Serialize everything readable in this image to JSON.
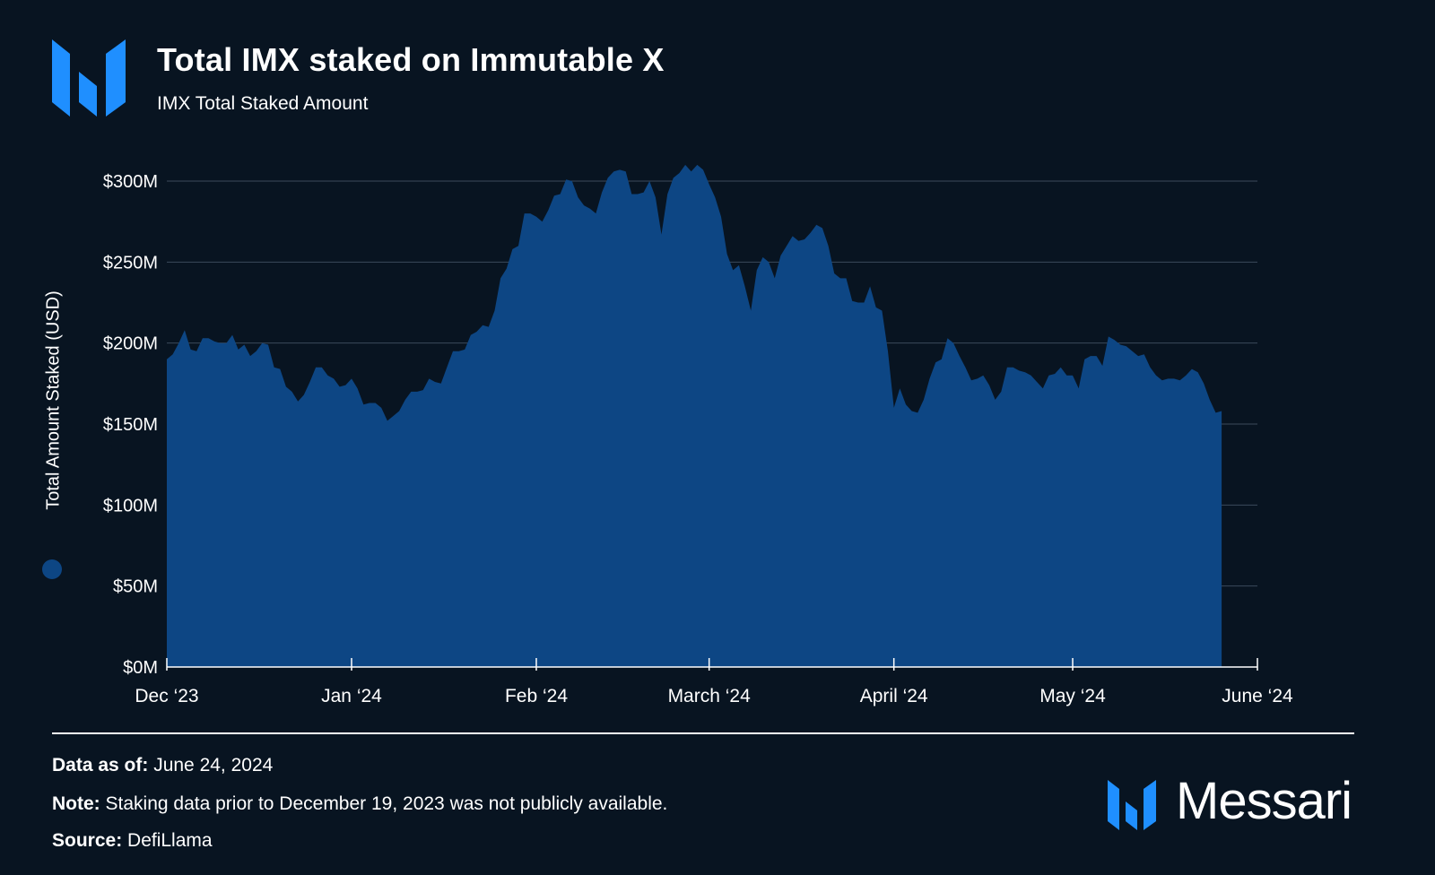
{
  "header": {
    "title": "Total IMX staked on Immutable X",
    "subtitle": "IMX Total Staked Amount"
  },
  "footer": {
    "data_as_of_label": "Data as of:",
    "data_as_of_value": "June 24, 2024",
    "note_label": "Note:",
    "note_value": "Staking data prior to December 19, 2023 was not publicly available.",
    "source_label": "Source:",
    "source_value": "DefiLlama",
    "brand": "Messari"
  },
  "colors": {
    "background": "#081421",
    "area_fill": "#0d4684",
    "brand_blue": "#1f8fff",
    "grid": "#3b4a5c"
  },
  "icons": [
    "immutable-x-logo-icon",
    "messari-logo-icon"
  ],
  "chart_data": {
    "type": "area",
    "title": "Total IMX staked on Immutable X",
    "subtitle": "IMX Total Staked Amount",
    "ylabel": "Total Amount Staked (USD)",
    "xlabel": "",
    "ylim": [
      0,
      300
    ],
    "y_unit": "$M",
    "y_ticks": [
      0,
      50,
      100,
      150,
      200,
      250,
      300
    ],
    "y_tick_labels": [
      "$0M",
      "$50M",
      "$100M",
      "$150M",
      "$200M",
      "$250M",
      "$300M"
    ],
    "x_ticks": [
      "2023-12-19",
      "2024-01-19",
      "2024-02-19",
      "2024-03-19",
      "2024-04-19",
      "2024-05-19",
      "2024-06-19"
    ],
    "x_tick_labels": [
      "Dec ‘23",
      "Jan ‘24",
      "Feb ‘24",
      "March ‘24",
      "April ‘24",
      "May ‘24",
      "June ‘24"
    ],
    "x_range": [
      "2023-12-19",
      "2024-06-19"
    ],
    "grid": true,
    "series": [
      {
        "color": "#0d4684",
        "points": [
          [
            "2023-12-19",
            190
          ],
          [
            "2023-12-20",
            193
          ],
          [
            "2023-12-21",
            200
          ],
          [
            "2023-12-22",
            208
          ],
          [
            "2023-12-23",
            196
          ],
          [
            "2023-12-24",
            195
          ],
          [
            "2023-12-25",
            203
          ],
          [
            "2023-12-26",
            203
          ],
          [
            "2023-12-27",
            201
          ],
          [
            "2023-12-28",
            200
          ],
          [
            "2023-12-29",
            200
          ],
          [
            "2023-12-30",
            205
          ],
          [
            "2023-12-31",
            196
          ],
          [
            "2024-01-01",
            199
          ],
          [
            "2024-01-02",
            192
          ],
          [
            "2024-01-03",
            195
          ],
          [
            "2024-01-04",
            200
          ],
          [
            "2024-01-05",
            199
          ],
          [
            "2024-01-06",
            185
          ],
          [
            "2024-01-07",
            184
          ],
          [
            "2024-01-08",
            173
          ],
          [
            "2024-01-09",
            170
          ],
          [
            "2024-01-10",
            164
          ],
          [
            "2024-01-11",
            168
          ],
          [
            "2024-01-12",
            176
          ],
          [
            "2024-01-13",
            185
          ],
          [
            "2024-01-14",
            185
          ],
          [
            "2024-01-15",
            180
          ],
          [
            "2024-01-16",
            178
          ],
          [
            "2024-01-17",
            173
          ],
          [
            "2024-01-18",
            174
          ],
          [
            "2024-01-19",
            178
          ],
          [
            "2024-01-20",
            172
          ],
          [
            "2024-01-21",
            162
          ],
          [
            "2024-01-22",
            163
          ],
          [
            "2024-01-23",
            163
          ],
          [
            "2024-01-24",
            160
          ],
          [
            "2024-01-25",
            152
          ],
          [
            "2024-01-26",
            155
          ],
          [
            "2024-01-27",
            158
          ],
          [
            "2024-01-28",
            165
          ],
          [
            "2024-01-29",
            170
          ],
          [
            "2024-01-30",
            170
          ],
          [
            "2024-01-31",
            171
          ],
          [
            "2024-02-01",
            178
          ],
          [
            "2024-02-02",
            176
          ],
          [
            "2024-02-03",
            175
          ],
          [
            "2024-02-04",
            185
          ],
          [
            "2024-02-05",
            195
          ],
          [
            "2024-02-06",
            195
          ],
          [
            "2024-02-07",
            196
          ],
          [
            "2024-02-08",
            205
          ],
          [
            "2024-02-09",
            207
          ],
          [
            "2024-02-10",
            211
          ],
          [
            "2024-02-11",
            210
          ],
          [
            "2024-02-12",
            220
          ],
          [
            "2024-02-13",
            240
          ],
          [
            "2024-02-14",
            246
          ],
          [
            "2024-02-15",
            258
          ],
          [
            "2024-02-16",
            260
          ],
          [
            "2024-02-17",
            280
          ],
          [
            "2024-02-18",
            280
          ],
          [
            "2024-02-19",
            278
          ],
          [
            "2024-02-20",
            275
          ],
          [
            "2024-02-21",
            282
          ],
          [
            "2024-02-22",
            291
          ],
          [
            "2024-02-23",
            292
          ],
          [
            "2024-02-24",
            301
          ],
          [
            "2024-02-25",
            300
          ],
          [
            "2024-02-26",
            290
          ],
          [
            "2024-02-27",
            285
          ],
          [
            "2024-02-28",
            283
          ],
          [
            "2024-02-29",
            280
          ],
          [
            "2024-03-01",
            293
          ],
          [
            "2024-03-02",
            302
          ],
          [
            "2024-03-03",
            306
          ],
          [
            "2024-03-04",
            307
          ],
          [
            "2024-03-05",
            306
          ],
          [
            "2024-03-06",
            292
          ],
          [
            "2024-03-07",
            292
          ],
          [
            "2024-03-08",
            293
          ],
          [
            "2024-03-09",
            300
          ],
          [
            "2024-03-10",
            290
          ],
          [
            "2024-03-11",
            267
          ],
          [
            "2024-03-12",
            292
          ],
          [
            "2024-03-13",
            302
          ],
          [
            "2024-03-14",
            305
          ],
          [
            "2024-03-15",
            310
          ],
          [
            "2024-03-16",
            306
          ],
          [
            "2024-03-17",
            310
          ],
          [
            "2024-03-18",
            307
          ],
          [
            "2024-03-19",
            298
          ],
          [
            "2024-03-20",
            290
          ],
          [
            "2024-03-21",
            278
          ],
          [
            "2024-03-22",
            255
          ],
          [
            "2024-03-23",
            245
          ],
          [
            "2024-03-24",
            248
          ],
          [
            "2024-03-25",
            235
          ],
          [
            "2024-03-26",
            220
          ],
          [
            "2024-03-27",
            245
          ],
          [
            "2024-03-28",
            253
          ],
          [
            "2024-03-29",
            250
          ],
          [
            "2024-03-30",
            240
          ],
          [
            "2024-03-31",
            254
          ],
          [
            "2024-04-01",
            260
          ],
          [
            "2024-04-02",
            266
          ],
          [
            "2024-04-03",
            263
          ],
          [
            "2024-04-04",
            264
          ],
          [
            "2024-04-05",
            268
          ],
          [
            "2024-04-06",
            273
          ],
          [
            "2024-04-07",
            271
          ],
          [
            "2024-04-08",
            260
          ],
          [
            "2024-04-09",
            243
          ],
          [
            "2024-04-10",
            240
          ],
          [
            "2024-04-11",
            240
          ],
          [
            "2024-04-12",
            226
          ],
          [
            "2024-04-13",
            225
          ],
          [
            "2024-04-14",
            225
          ],
          [
            "2024-04-15",
            235
          ],
          [
            "2024-04-16",
            222
          ],
          [
            "2024-04-17",
            220
          ],
          [
            "2024-04-18",
            195
          ],
          [
            "2024-04-19",
            160
          ],
          [
            "2024-04-20",
            172
          ],
          [
            "2024-04-21",
            162
          ],
          [
            "2024-04-22",
            158
          ],
          [
            "2024-04-23",
            157
          ],
          [
            "2024-04-24",
            165
          ],
          [
            "2024-04-25",
            178
          ],
          [
            "2024-04-26",
            188
          ],
          [
            "2024-04-27",
            190
          ],
          [
            "2024-04-28",
            203
          ],
          [
            "2024-04-29",
            200
          ],
          [
            "2024-04-30",
            192
          ],
          [
            "2024-05-01",
            185
          ],
          [
            "2024-05-02",
            177
          ],
          [
            "2024-05-03",
            178
          ],
          [
            "2024-05-04",
            180
          ],
          [
            "2024-05-05",
            174
          ],
          [
            "2024-05-06",
            165
          ],
          [
            "2024-05-07",
            170
          ],
          [
            "2024-05-08",
            185
          ],
          [
            "2024-05-09",
            185
          ],
          [
            "2024-05-10",
            183
          ],
          [
            "2024-05-11",
            182
          ],
          [
            "2024-05-12",
            180
          ],
          [
            "2024-05-13",
            176
          ],
          [
            "2024-05-14",
            172
          ],
          [
            "2024-05-15",
            180
          ],
          [
            "2024-05-16",
            181
          ],
          [
            "2024-05-17",
            185
          ],
          [
            "2024-05-18",
            180
          ],
          [
            "2024-05-19",
            180
          ],
          [
            "2024-05-20",
            172
          ],
          [
            "2024-05-21",
            190
          ],
          [
            "2024-05-22",
            192
          ],
          [
            "2024-05-23",
            192
          ],
          [
            "2024-05-24",
            186
          ],
          [
            "2024-05-25",
            204
          ],
          [
            "2024-05-26",
            202
          ],
          [
            "2024-05-27",
            199
          ],
          [
            "2024-05-28",
            198
          ],
          [
            "2024-05-29",
            195
          ],
          [
            "2024-05-30",
            192
          ],
          [
            "2024-05-31",
            193
          ],
          [
            "2024-06-01",
            185
          ],
          [
            "2024-06-02",
            180
          ],
          [
            "2024-06-03",
            177
          ],
          [
            "2024-06-04",
            178
          ],
          [
            "2024-06-05",
            178
          ],
          [
            "2024-06-06",
            177
          ],
          [
            "2024-06-07",
            180
          ],
          [
            "2024-06-08",
            184
          ],
          [
            "2024-06-09",
            182
          ],
          [
            "2024-06-10",
            175
          ],
          [
            "2024-06-11",
            165
          ],
          [
            "2024-06-12",
            157
          ],
          [
            "2024-06-13",
            158
          ]
        ]
      }
    ]
  }
}
